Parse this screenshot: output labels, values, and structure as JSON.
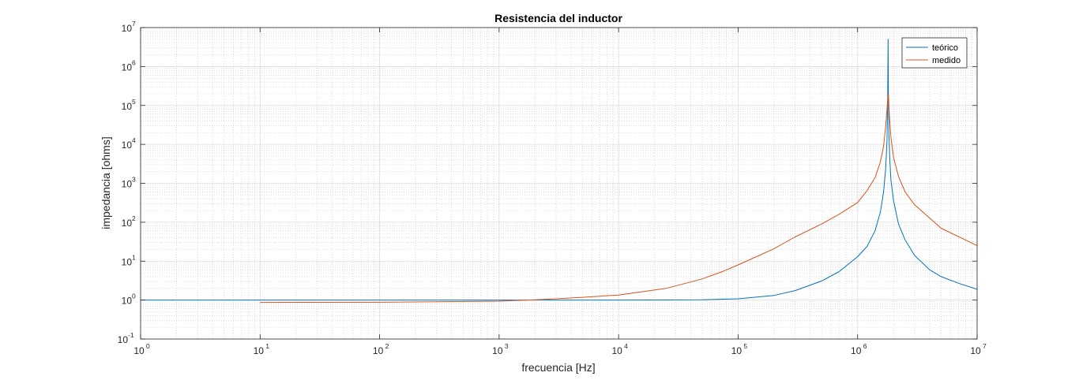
{
  "chart_data": {
    "type": "line",
    "title": "Resistencia del inductor",
    "xlabel": "frecuencia [Hz]",
    "ylabel": "impedancia [ohms]",
    "xscale": "log",
    "yscale": "log",
    "xlim": [
      1,
      10000000
    ],
    "ylim": [
      0.1,
      10000000
    ],
    "grid": true,
    "legend_position": "top-right",
    "x_ticks": [
      {
        "base": "10",
        "exp": "0",
        "value": 1
      },
      {
        "base": "10",
        "exp": "1",
        "value": 10
      },
      {
        "base": "10",
        "exp": "2",
        "value": 100
      },
      {
        "base": "10",
        "exp": "3",
        "value": 1000
      },
      {
        "base": "10",
        "exp": "4",
        "value": 10000
      },
      {
        "base": "10",
        "exp": "5",
        "value": 100000
      },
      {
        "base": "10",
        "exp": "6",
        "value": 1000000
      },
      {
        "base": "10",
        "exp": "7",
        "value": 10000000
      }
    ],
    "y_ticks": [
      {
        "base": "10",
        "exp": "-1",
        "value": 0.1
      },
      {
        "base": "10",
        "exp": "0",
        "value": 1
      },
      {
        "base": "10",
        "exp": "1",
        "value": 10
      },
      {
        "base": "10",
        "exp": "2",
        "value": 100
      },
      {
        "base": "10",
        "exp": "3",
        "value": 1000
      },
      {
        "base": "10",
        "exp": "4",
        "value": 10000
      },
      {
        "base": "10",
        "exp": "5",
        "value": 100000
      },
      {
        "base": "10",
        "exp": "6",
        "value": 1000000
      },
      {
        "base": "10",
        "exp": "7",
        "value": 10000000
      }
    ],
    "series": [
      {
        "name": "teórico",
        "color": "#0072BD",
        "x": [
          1,
          10,
          100,
          1000,
          10000,
          50000,
          100000,
          200000,
          300000,
          500000,
          700000,
          1000000,
          1200000,
          1400000,
          1550000,
          1650000,
          1720000,
          1760000,
          1785000,
          1800000,
          1810000,
          1830000,
          1860000,
          1900000,
          2000000,
          2200000,
          2500000,
          3000000,
          4000000,
          5000000,
          7000000,
          10000000
        ],
        "y": [
          1,
          1,
          1,
          1,
          1,
          1.02,
          1.08,
          1.32,
          1.75,
          3.1,
          5.4,
          13,
          24,
          60,
          180,
          600,
          2500,
          12000,
          150000,
          5000000,
          150000,
          18000,
          4000,
          1200,
          350,
          90,
          35,
          14,
          6,
          4,
          2.7,
          1.9
        ]
      },
      {
        "name": "medido",
        "color": "#D95319",
        "x": [
          10,
          100,
          1000,
          2000,
          3000,
          5000,
          10000,
          25000,
          50000,
          75000,
          100000,
          150000,
          200000,
          300000,
          500000,
          700000,
          1000000,
          1200000,
          1400000,
          1550000,
          1650000,
          1720000,
          1780000,
          1810000,
          1840000,
          1900000,
          2000000,
          2200000,
          2500000,
          3000000,
          5000000,
          10000000
        ],
        "y": [
          0.87,
          0.88,
          0.94,
          1.02,
          1.08,
          1.18,
          1.35,
          2.0,
          3.5,
          5.5,
          8,
          14,
          21,
          42,
          90,
          160,
          320,
          650,
          1400,
          3500,
          9000,
          30000,
          120000,
          200000,
          60000,
          15000,
          4500,
          1500,
          600,
          280,
          70,
          25
        ]
      }
    ]
  }
}
